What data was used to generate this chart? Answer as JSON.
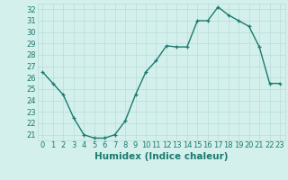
{
  "x": [
    0,
    1,
    2,
    3,
    4,
    5,
    6,
    7,
    8,
    9,
    10,
    11,
    12,
    13,
    14,
    15,
    16,
    17,
    18,
    19,
    20,
    21,
    22,
    23
  ],
  "y": [
    26.5,
    25.5,
    24.5,
    22.5,
    21.0,
    20.7,
    20.7,
    21.0,
    22.2,
    24.5,
    26.5,
    27.5,
    28.8,
    28.7,
    28.7,
    31.0,
    31.0,
    32.2,
    31.5,
    31.0,
    30.5,
    28.7,
    25.5,
    25.5
  ],
  "line_color": "#1a7a6e",
  "marker_color": "#1a7a6e",
  "bg_color": "#d4f0ec",
  "grid_color": "#b8dcd8",
  "xlabel": "Humidex (Indice chaleur)",
  "ylim_min": 20.5,
  "ylim_max": 32.5,
  "xlim_min": -0.5,
  "xlim_max": 23.5,
  "yticks": [
    21,
    22,
    23,
    24,
    25,
    26,
    27,
    28,
    29,
    30,
    31,
    32
  ],
  "xticks": [
    0,
    1,
    2,
    3,
    4,
    5,
    6,
    7,
    8,
    9,
    10,
    11,
    12,
    13,
    14,
    15,
    16,
    17,
    18,
    19,
    20,
    21,
    22,
    23
  ],
  "axis_color": "#1a7a6e",
  "tick_font_size": 6.0,
  "xlabel_font_size": 7.5,
  "linewidth": 1.0,
  "markersize": 3.5
}
